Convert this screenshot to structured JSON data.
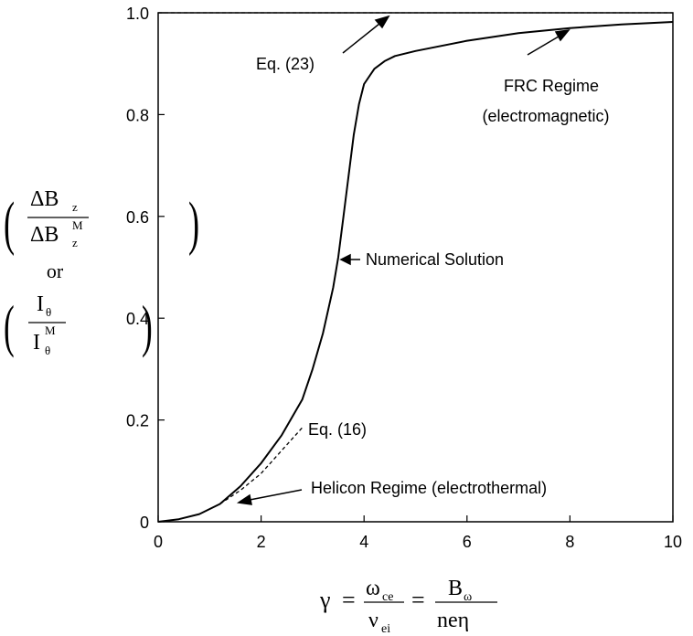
{
  "chart_data": {
    "type": "line",
    "xlim": [
      0,
      10
    ],
    "ylim": [
      0,
      1.0
    ],
    "x_ticks": [
      "0",
      "2",
      "4",
      "6",
      "8",
      "10"
    ],
    "x_tick_values": [
      0,
      2,
      4,
      6,
      8,
      10
    ],
    "y_ticks": [
      "0",
      "0.2",
      "0.4",
      "0.6",
      "0.8",
      "1.0"
    ],
    "y_tick_values": [
      0,
      0.2,
      0.4,
      0.6,
      0.8,
      1.0
    ],
    "grid": false,
    "series": [
      {
        "style": "solid",
        "x": [
          0,
          0.4,
          0.8,
          1.2,
          1.6,
          2.0,
          2.4,
          2.8,
          3.0,
          3.2,
          3.4,
          3.5,
          3.6,
          3.7,
          3.8,
          3.9,
          4.0,
          4.2,
          4.4,
          4.6,
          5.0,
          6.0,
          7.0,
          8.0,
          9.0,
          10.0
        ],
        "y": [
          0,
          0.005,
          0.015,
          0.035,
          0.07,
          0.115,
          0.17,
          0.24,
          0.3,
          0.37,
          0.46,
          0.52,
          0.6,
          0.68,
          0.76,
          0.82,
          0.86,
          0.89,
          0.905,
          0.915,
          0.925,
          0.945,
          0.96,
          0.97,
          0.977,
          0.982
        ]
      },
      {
        "style": "dashed",
        "x": [
          1.2,
          1.6,
          2.0,
          2.4,
          2.8
        ],
        "y": [
          0.035,
          0.062,
          0.095,
          0.14,
          0.185
        ]
      },
      {
        "style": "dashed",
        "x": [
          0,
          10
        ],
        "y": [
          1.0,
          1.0
        ]
      }
    ],
    "annotations": {
      "eq23": "Eq. (23)",
      "frc_line1": "FRC Regime",
      "frc_line2": "(electromagnetic)",
      "numerical": "Numerical Solution",
      "eq16": "Eq. (16)",
      "helicon": "Helicon Regime (electrothermal)"
    },
    "ylabel": {
      "delta_num": "ΔB",
      "delta_num_sub": "z",
      "delta_den": "ΔB",
      "delta_den_sub": "z",
      "delta_den_sup": "M",
      "or": "or",
      "i_num": "I",
      "i_num_sub": "θ",
      "i_den": "I",
      "i_den_sub": "θ",
      "i_den_sup": "M"
    },
    "xlabel": {
      "gamma": "γ",
      "eq1": "=",
      "omega": "ω",
      "omega_sub": "ce",
      "nu": "ν",
      "nu_sub": "ei",
      "eq2": "=",
      "b": "B",
      "b_sub": "ω",
      "den": "neη"
    }
  }
}
